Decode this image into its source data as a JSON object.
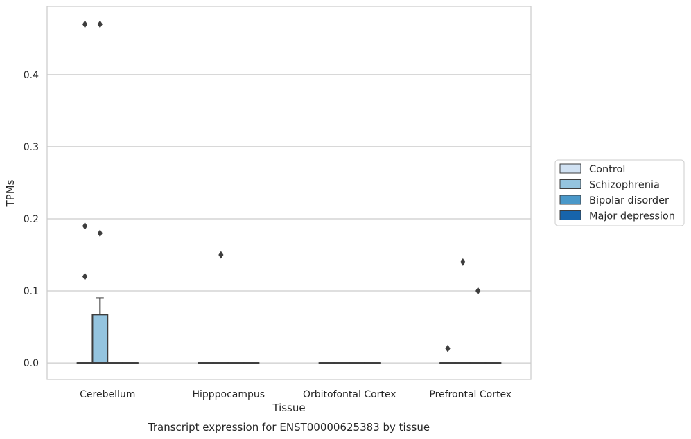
{
  "chart_data": {
    "type": "box",
    "title": "",
    "caption": "Transcript expression for ENST00000625383 by tissue",
    "xlabel": "Tissue",
    "ylabel": "TPMs",
    "ylim": [
      -0.023,
      0.495
    ],
    "yticks": [
      "0.0",
      "0.1",
      "0.2",
      "0.3",
      "0.4"
    ],
    "yticks_values": [
      0.0,
      0.1,
      0.2,
      0.3,
      0.4
    ],
    "grid": "horizontal",
    "legend_placement": "right",
    "categories": [
      "Cerebellum",
      "Hipppocampus",
      "Orbitofontal Cortex",
      "Prefrontal Cortex"
    ],
    "series": [
      {
        "name": "Control",
        "color": "#d0e1f2",
        "boxes": [
          {
            "q1": 0,
            "median": 0,
            "q3": 0,
            "whisker_low": 0,
            "whisker_high": 0,
            "outliers": [
              0.47,
              0.19,
              0.12
            ]
          },
          {
            "q1": 0,
            "median": 0,
            "q3": 0,
            "whisker_low": 0,
            "whisker_high": 0,
            "outliers": []
          },
          {
            "q1": 0,
            "median": 0,
            "q3": 0,
            "whisker_low": 0,
            "whisker_high": 0,
            "outliers": []
          },
          {
            "q1": 0,
            "median": 0,
            "q3": 0,
            "whisker_low": 0,
            "whisker_high": 0,
            "outliers": [
              0.02
            ]
          }
        ]
      },
      {
        "name": "Schizophrenia",
        "color": "#94c4df",
        "boxes": [
          {
            "q1": 0,
            "median": 0,
            "q3": 0.067,
            "whisker_low": 0,
            "whisker_high": 0.09,
            "outliers": [
              0.47,
              0.18
            ]
          },
          {
            "q1": 0,
            "median": 0,
            "q3": 0,
            "whisker_low": 0,
            "whisker_high": 0,
            "outliers": [
              0.15
            ]
          },
          {
            "q1": 0,
            "median": 0,
            "q3": 0,
            "whisker_low": 0,
            "whisker_high": 0,
            "outliers": []
          },
          {
            "q1": 0,
            "median": 0,
            "q3": 0,
            "whisker_low": 0,
            "whisker_high": 0,
            "outliers": [
              0.14
            ]
          }
        ]
      },
      {
        "name": "Bipolar disorder",
        "color": "#4a98c9",
        "boxes": [
          {
            "q1": 0,
            "median": 0,
            "q3": 0,
            "whisker_low": 0,
            "whisker_high": 0,
            "outliers": []
          },
          {
            "q1": 0,
            "median": 0,
            "q3": 0,
            "whisker_low": 0,
            "whisker_high": 0,
            "outliers": []
          },
          {
            "q1": 0,
            "median": 0,
            "q3": 0,
            "whisker_low": 0,
            "whisker_high": 0,
            "outliers": []
          },
          {
            "q1": 0,
            "median": 0,
            "q3": 0,
            "whisker_low": 0,
            "whisker_high": 0,
            "outliers": [
              0.1
            ]
          }
        ]
      },
      {
        "name": "Major depression",
        "color": "#1764ab",
        "boxes": [
          {
            "q1": 0,
            "median": 0,
            "q3": 0,
            "whisker_low": 0,
            "whisker_high": 0,
            "outliers": []
          },
          {
            "q1": 0,
            "median": 0,
            "q3": 0,
            "whisker_low": 0,
            "whisker_high": 0,
            "outliers": []
          },
          {
            "q1": 0,
            "median": 0,
            "q3": 0,
            "whisker_low": 0,
            "whisker_high": 0,
            "outliers": []
          },
          {
            "q1": 0,
            "median": 0,
            "q3": 0,
            "whisker_low": 0,
            "whisker_high": 0,
            "outliers": []
          }
        ]
      }
    ]
  }
}
